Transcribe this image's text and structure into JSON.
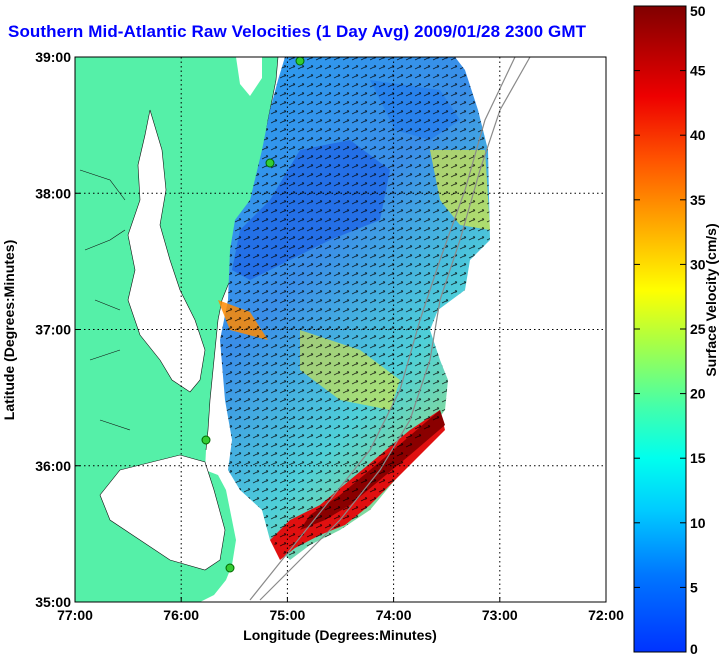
{
  "title": "Southern Mid-Atlantic Raw Velocities (1 Day Avg) 2009/01/28 2300 GMT",
  "map": {
    "xlabel": "Longitude (Degrees:Minutes)",
    "ylabel": "Latitude (Degrees:Minutes)",
    "xticks": [
      "77:00",
      "76:00",
      "75:00",
      "74:00",
      "73:00",
      "72:00"
    ],
    "yticks": [
      "39:00",
      "38:00",
      "37:00",
      "36:00",
      "35:00"
    ],
    "land_color": "#55f0a8",
    "grid": "dotted"
  },
  "colorbar": {
    "label": "Surface Velocity (cm/s)",
    "ticks": [
      "50",
      "45",
      "40",
      "35",
      "30",
      "25",
      "20",
      "15",
      "10",
      "5",
      "0"
    ],
    "range": [
      0,
      50
    ],
    "colormap": "jet"
  }
}
